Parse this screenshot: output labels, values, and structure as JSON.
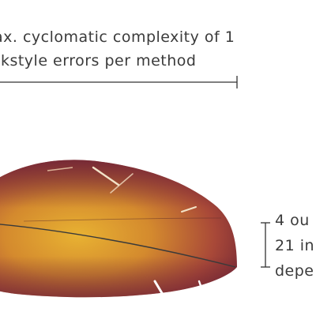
{
  "annotations": {
    "top_line_1": "ax. cyclomatic complexity of 1",
    "top_line_2": "ckstyle errors per method",
    "right_line_1": "4 ou",
    "right_line_2": "21 in",
    "right_line_3": "depe"
  },
  "colors": {
    "feather_dark": "#7a2a3a",
    "feather_mid": "#b5543a",
    "feather_light": "#e0a030",
    "rule_line": "#333333",
    "text": "#3b3b3b",
    "background": "#ffffff"
  },
  "icons": {
    "feather": "feather-illustration",
    "horizontal_bracket": "dimension-line",
    "vertical_bracket": "dimension-bracket"
  }
}
